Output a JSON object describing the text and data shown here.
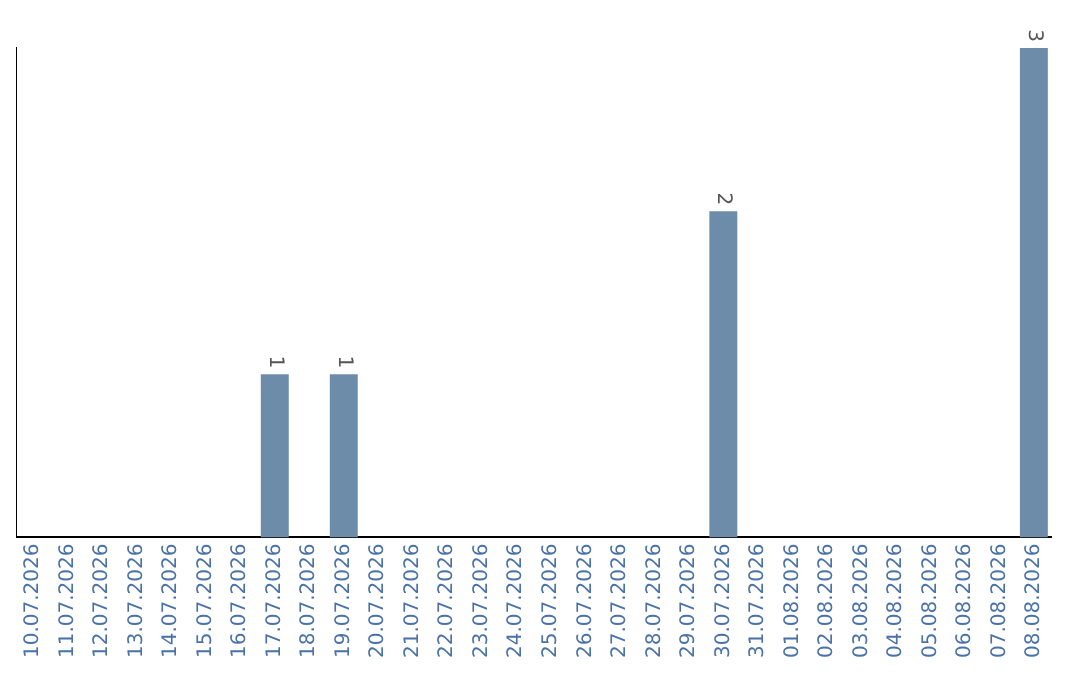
{
  "chart_data": {
    "type": "bar",
    "categories": [
      "10.07.2026",
      "11.07.2026",
      "12.07.2026",
      "13.07.2026",
      "14.07.2026",
      "15.07.2026",
      "16.07.2026",
      "17.07.2026",
      "18.07.2026",
      "19.07.2026",
      "20.07.2026",
      "21.07.2026",
      "22.07.2026",
      "23.07.2026",
      "24.07.2026",
      "25.07.2026",
      "26.07.2026",
      "27.07.2026",
      "28.07.2026",
      "29.07.2026",
      "30.07.2026",
      "31.07.2026",
      "01.08.2026",
      "02.08.2026",
      "03.08.2026",
      "04.08.2026",
      "05.08.2026",
      "06.08.2026",
      "07.08.2026",
      "08.08.2026"
    ],
    "values": [
      0,
      0,
      0,
      0,
      0,
      0,
      0,
      1,
      0,
      1,
      0,
      0,
      0,
      0,
      0,
      0,
      0,
      0,
      0,
      0,
      2,
      0,
      0,
      0,
      0,
      0,
      0,
      0,
      0,
      3
    ],
    "value_labels": [
      null,
      null,
      null,
      null,
      null,
      null,
      null,
      "1",
      null,
      "1",
      null,
      null,
      null,
      null,
      null,
      null,
      null,
      null,
      null,
      null,
      "2",
      null,
      null,
      null,
      null,
      null,
      null,
      null,
      null,
      "3"
    ],
    "color": "#6d8caa",
    "grid": false,
    "legend": false,
    "tick_labels": "x"
  }
}
